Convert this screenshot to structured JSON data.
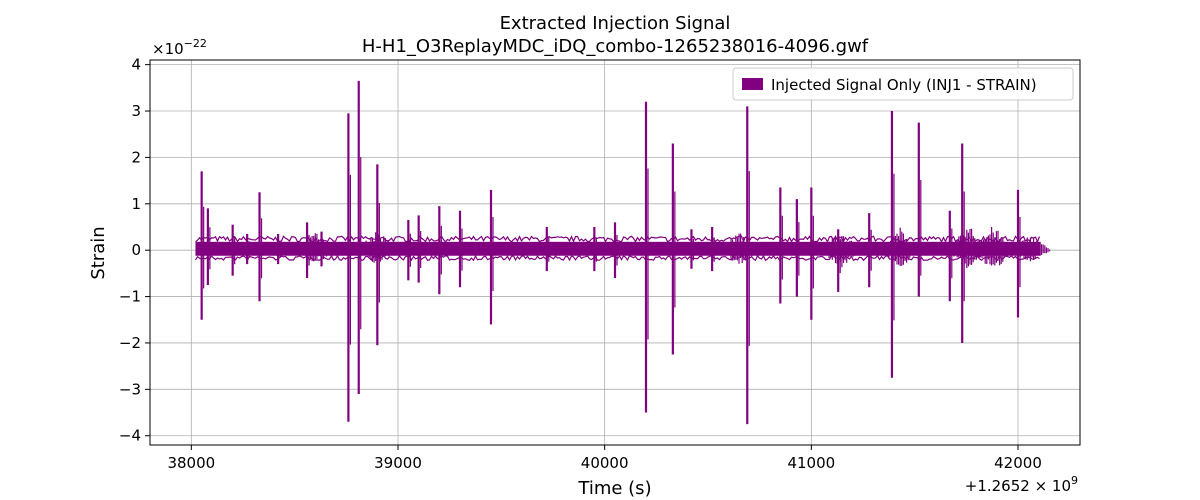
{
  "chart_data": {
    "type": "line",
    "title_lines": [
      "Extracted Injection Signal",
      "H-H1_O3ReplayMDC_iDQ_combo-1265238016-4096.gwf"
    ],
    "xlabel": "Time (s)",
    "ylabel": "Strain",
    "x_offset_label": "+1.2652 × 10",
    "x_offset_exp": "9",
    "y_multiplier_label": "×10",
    "y_multiplier_exp": "−22",
    "xlim": [
      37800,
      42300
    ],
    "ylim": [
      -4.2,
      4.1
    ],
    "x_ticks": [
      38000,
      39000,
      40000,
      41000,
      42000
    ],
    "x_tick_labels": [
      "38000",
      "39000",
      "40000",
      "41000",
      "42000"
    ],
    "y_ticks": [
      -4,
      -3,
      -2,
      -1,
      0,
      1,
      2,
      3,
      4
    ],
    "y_tick_labels": [
      "−4",
      "−3",
      "−2",
      "−1",
      "0",
      "1",
      "2",
      "3",
      "4"
    ],
    "grid": true,
    "legend_position": "top-right",
    "color": "#800080",
    "series": [
      {
        "name": "Injected Signal Only (INJ1 - STRAIN)",
        "x_start": 38020,
        "x_end": 42110,
        "baseline_band": [
          -0.12,
          0.18
        ],
        "spikes": [
          {
            "x": 38050,
            "max": 1.7,
            "min": -1.5
          },
          {
            "x": 38080,
            "max": 0.9,
            "min": -0.75
          },
          {
            "x": 38200,
            "max": 0.55,
            "min": -0.55
          },
          {
            "x": 38270,
            "max": 0.35,
            "min": -0.3
          },
          {
            "x": 38330,
            "max": 1.25,
            "min": -1.1
          },
          {
            "x": 38420,
            "max": 0.35,
            "min": -0.3
          },
          {
            "x": 38560,
            "max": 0.6,
            "min": -0.6
          },
          {
            "x": 38630,
            "max": 0.4,
            "min": -0.35
          },
          {
            "x": 38760,
            "max": 2.95,
            "min": -3.7
          },
          {
            "x": 38810,
            "max": 3.65,
            "min": -3.1
          },
          {
            "x": 38900,
            "max": 1.85,
            "min": -2.05
          },
          {
            "x": 39050,
            "max": 0.65,
            "min": -0.65
          },
          {
            "x": 39100,
            "max": 0.75,
            "min": -0.7
          },
          {
            "x": 39200,
            "max": 0.95,
            "min": -0.95
          },
          {
            "x": 39300,
            "max": 0.85,
            "min": -0.8
          },
          {
            "x": 39450,
            "max": 1.3,
            "min": -1.6
          },
          {
            "x": 39720,
            "max": 0.5,
            "min": -0.45
          },
          {
            "x": 39950,
            "max": 0.5,
            "min": -0.45
          },
          {
            "x": 40050,
            "max": 0.6,
            "min": -0.6
          },
          {
            "x": 40200,
            "max": 3.2,
            "min": -3.5
          },
          {
            "x": 40330,
            "max": 2.3,
            "min": -2.25
          },
          {
            "x": 40420,
            "max": 0.45,
            "min": -0.4
          },
          {
            "x": 40520,
            "max": 0.5,
            "min": -0.45
          },
          {
            "x": 40690,
            "max": 3.1,
            "min": -3.75
          },
          {
            "x": 40850,
            "max": 1.35,
            "min": -1.15
          },
          {
            "x": 40930,
            "max": 1.1,
            "min": -1.0
          },
          {
            "x": 41000,
            "max": 1.35,
            "min": -1.5
          },
          {
            "x": 41130,
            "max": 0.45,
            "min": -0.9
          },
          {
            "x": 41280,
            "max": 0.8,
            "min": -0.8
          },
          {
            "x": 41390,
            "max": 3.0,
            "min": -2.75
          },
          {
            "x": 41520,
            "max": 2.75,
            "min": -1.0
          },
          {
            "x": 41670,
            "max": 0.85,
            "min": -1.1
          },
          {
            "x": 41730,
            "max": 2.3,
            "min": -2.0
          },
          {
            "x": 42000,
            "max": 1.3,
            "min": -1.45
          }
        ],
        "bursts": [
          {
            "x": 38600,
            "max": 0.4,
            "min": -0.3
          },
          {
            "x": 38900,
            "max": 0.45,
            "min": -0.35
          },
          {
            "x": 40650,
            "max": 0.4,
            "min": -0.35
          },
          {
            "x": 41140,
            "max": 0.45,
            "min": -0.4
          },
          {
            "x": 41430,
            "max": 0.5,
            "min": -0.4
          },
          {
            "x": 41760,
            "max": 0.55,
            "min": -0.45
          },
          {
            "x": 41880,
            "max": 0.55,
            "min": -0.5
          },
          {
            "x": 42060,
            "max": 0.35,
            "min": -0.3
          }
        ]
      }
    ]
  }
}
